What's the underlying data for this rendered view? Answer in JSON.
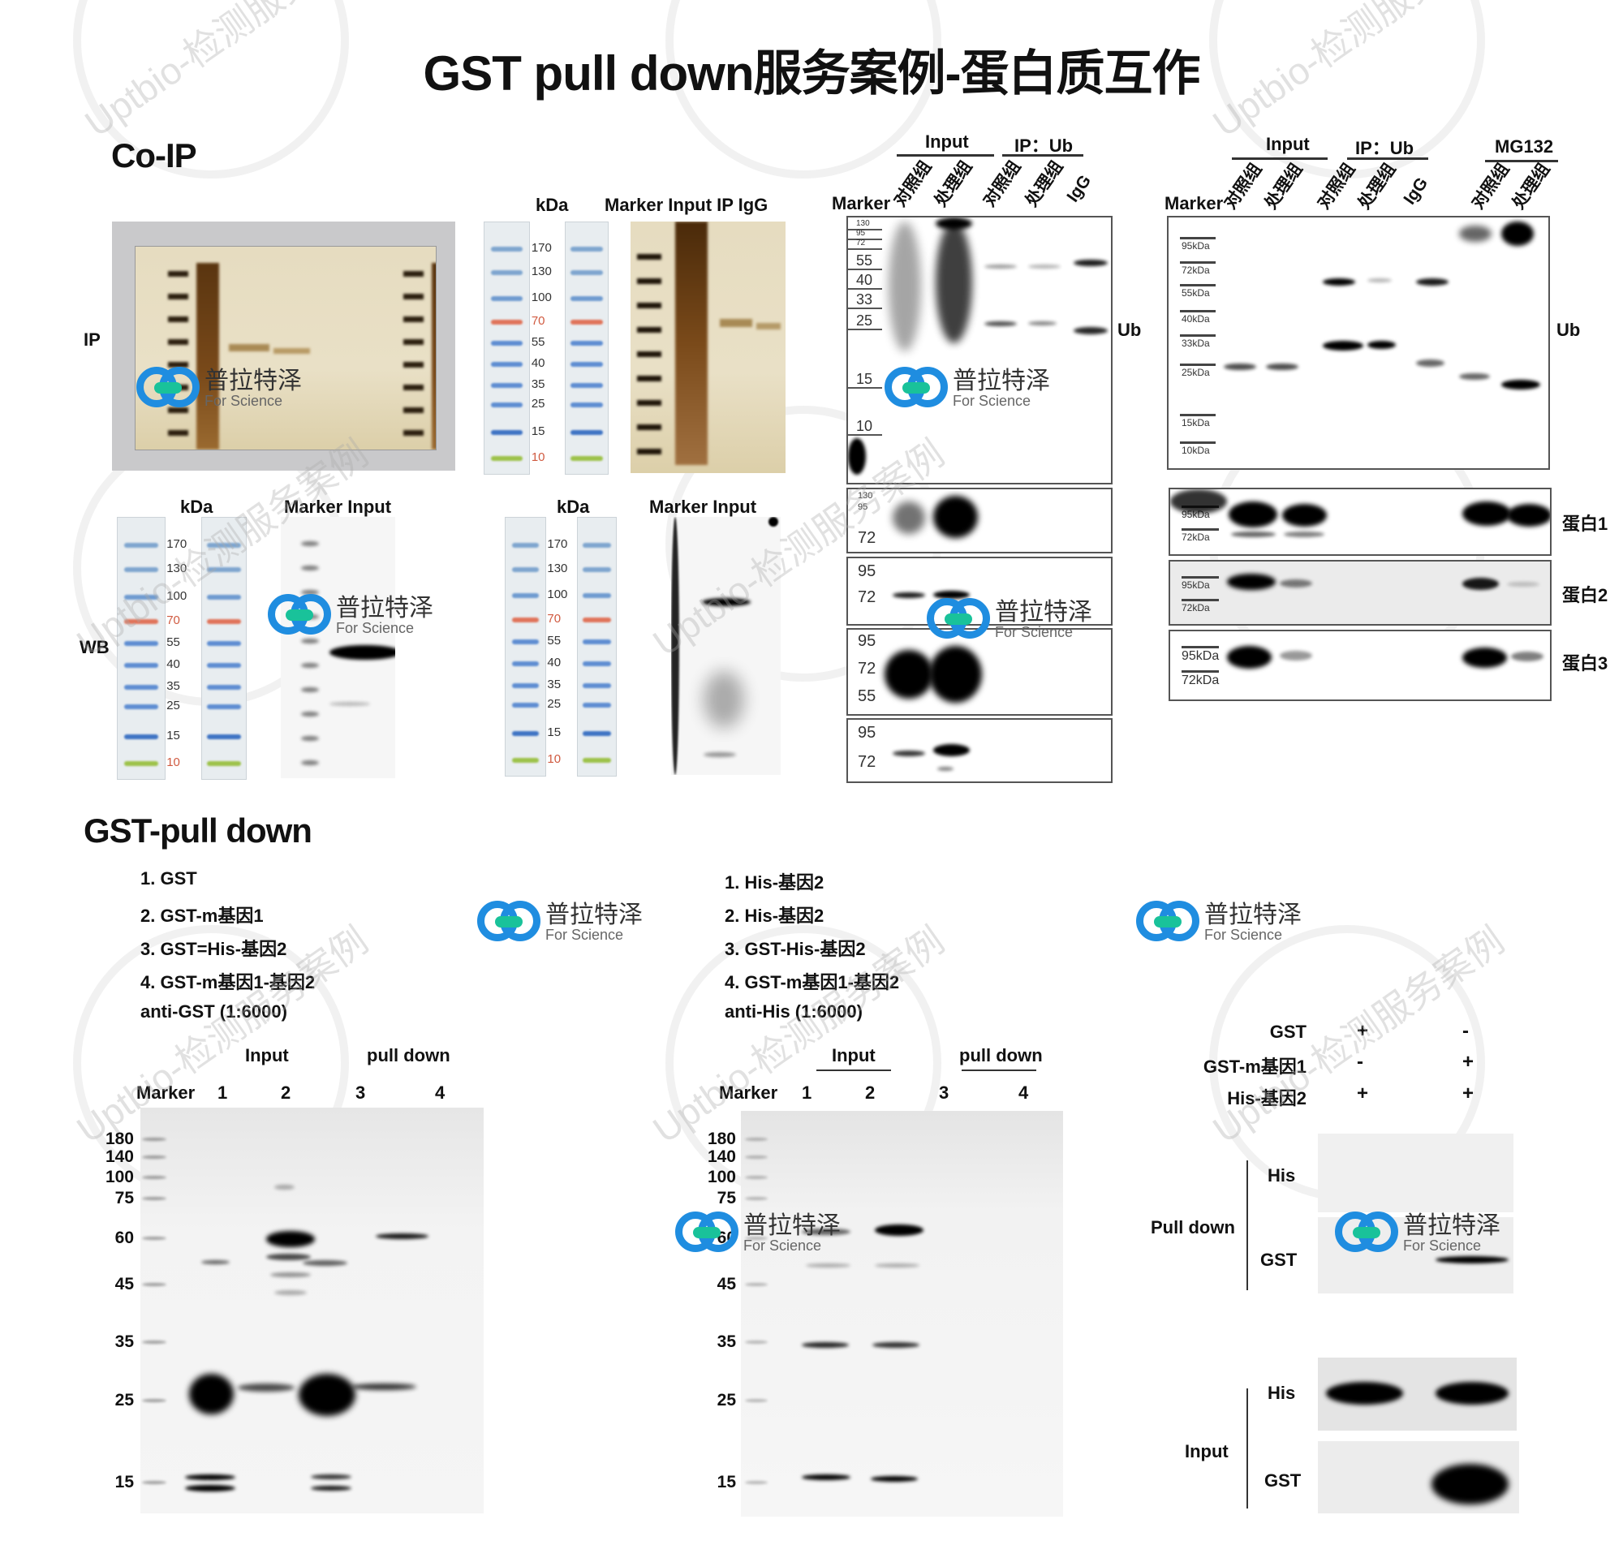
{
  "title": "GST pull down服务案例-蛋白质互作",
  "watermark": {
    "text": "Uptbio-检测服务案例",
    "logo_cn": "普拉特泽",
    "logo_en": "For Science"
  },
  "coip": {
    "heading": "Co-IP",
    "row_labels": {
      "ip": "IP",
      "wb": "WB"
    },
    "ladder_kda": [
      "170",
      "130",
      "100",
      "70",
      "55",
      "40",
      "35",
      "25",
      "15",
      "10"
    ],
    "kda_label": "kDa",
    "gel2_header": "Marker Input  IP   IgG",
    "wb_header": "Marker Input",
    "blot_a": {
      "group_input": "Input",
      "group_ip": "IP：Ub",
      "marker": "Marker",
      "lanes": [
        "对照组",
        "处理组",
        "对照组",
        "处理组",
        "IgG"
      ],
      "main_ticks": [
        "130",
        "95",
        "72",
        "55",
        "40",
        "33",
        "25",
        "15",
        "10"
      ],
      "target": "Ub",
      "sub_ticks": [
        [
          "130",
          "95",
          "72"
        ],
        [
          "95",
          "72"
        ],
        [
          "95",
          "72",
          "55"
        ],
        [
          "95",
          "72"
        ]
      ]
    },
    "blot_b": {
      "group_input": "Input",
      "group_ip": "IP：Ub",
      "group_mg": "MG132",
      "marker": "Marker",
      "lanes": [
        "对照组",
        "处理组",
        "对照组",
        "处理组",
        "IgG",
        "对照组",
        "处理组"
      ],
      "main_ticks": [
        "95kDa",
        "72kDa",
        "55kDa",
        "40kDa",
        "33kDa",
        "25kDa",
        "15kDa",
        "10kDa"
      ],
      "target": "Ub",
      "sub": [
        {
          "label": "蛋白1",
          "ticks": [
            "95kDa",
            "72kDa"
          ]
        },
        {
          "label": "蛋白2",
          "ticks": [
            "95kDa",
            "72kDa"
          ]
        },
        {
          "label": "蛋白3",
          "ticks": [
            "95kDa",
            "72kDa"
          ]
        }
      ]
    }
  },
  "gst": {
    "heading": "GST-pull down",
    "left": {
      "legend": [
        "1. GST",
        "2. GST-m基因1",
        "3. GST=His-基因2",
        "4. GST-m基因1-基因2",
        "anti-GST (1:6000)"
      ],
      "group_input": "Input",
      "group_pull": "pull down",
      "lanes": [
        "Marker",
        "1",
        "2",
        "3",
        "4"
      ],
      "ticks": [
        "180",
        "140",
        "100",
        "75",
        "60",
        "45",
        "35",
        "25",
        "15"
      ]
    },
    "middle": {
      "legend": [
        "1. His-基因2",
        "2. His-基因2",
        "3. GST-His-基因2",
        "4. GST-m基因1-基因2",
        "anti-His (1:6000)"
      ],
      "group_input": "Input",
      "group_pull": "pull down",
      "lanes": [
        "Marker",
        "1",
        "2",
        "3",
        "4"
      ],
      "ticks": [
        "180",
        "140",
        "100",
        "75",
        "60",
        "45",
        "35",
        "25",
        "15"
      ]
    },
    "right": {
      "conditions": [
        {
          "name": "GST",
          "values": [
            "+",
            "-"
          ]
        },
        {
          "name": "GST-m基因1",
          "values": [
            "-",
            "+"
          ]
        },
        {
          "name": "His-基因2",
          "values": [
            "+",
            "+"
          ]
        }
      ],
      "pull_label": "Pull down",
      "input_label": "Input",
      "rows": [
        "His",
        "GST",
        "His",
        "GST"
      ]
    }
  }
}
